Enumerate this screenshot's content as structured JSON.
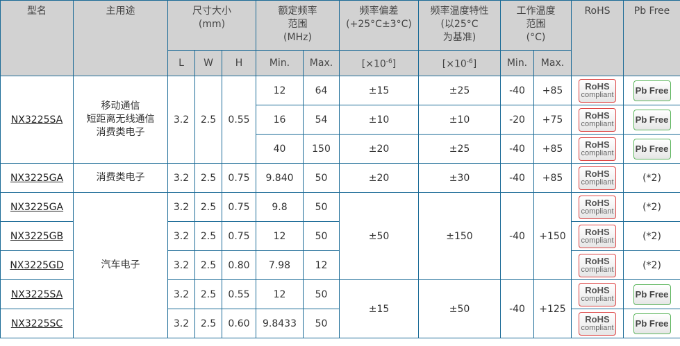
{
  "header": {
    "model": "型名",
    "usage": "主用途",
    "size": "尺寸大小\n(mm)",
    "freq": "额定频率\n范围\n(MHz)",
    "tol": "频率偏差\n(+25°C±3°C)",
    "tempchar": "频率温度特性\n(以25°C\n为基准)",
    "optemp": "工作温度\n范围\n(°C)",
    "rohs": "RoHS",
    "pbfree": "Pb Free",
    "L": "L",
    "W": "W",
    "H": "H",
    "min": "Min.",
    "max": "Max.",
    "unit_base": "[×10",
    "unit_exp": "-6",
    "unit_end": "]",
    "tmin": "Min.",
    "tmax": "Max."
  },
  "badges": {
    "rohs_top": "RoHS",
    "rohs_bottom": "compliant",
    "pbfree": "Pb Free",
    "note": "(*2)"
  },
  "colors": {
    "border": "#1a6a96",
    "header_bg": "#d2d2d2",
    "rohs_border": "#d44444",
    "pbfree_border": "#5bb55b"
  },
  "rows": [
    {
      "model": "NX3225SA",
      "usage": "移动通信\n短距离无线通信\n消费类电子",
      "L": "3.2",
      "W": "2.5",
      "H": "0.55",
      "min": "12",
      "max": "64",
      "tol": "±15",
      "tc": "±25",
      "tmin": "-40",
      "tmax": "+85",
      "pbfree": true
    },
    {
      "min": "16",
      "max": "54",
      "tol": "±10",
      "tc": "±10",
      "tmin": "-20",
      "tmax": "+75",
      "pbfree": true
    },
    {
      "min": "40",
      "max": "150",
      "tol": "±20",
      "tc": "±25",
      "tmin": "-40",
      "tmax": "+85",
      "pbfree": true
    },
    {
      "model": "NX3225GA",
      "usage": "消费类电子",
      "L": "3.2",
      "W": "2.5",
      "H": "0.75",
      "min": "9.840",
      "max": "50",
      "tol": "±20",
      "tc": "±30",
      "tmin": "-40",
      "tmax": "+85",
      "pbfree": false
    },
    {
      "model": "NX3225GA",
      "usage": "汽车电子",
      "L": "3.2",
      "W": "2.5",
      "H": "0.75",
      "min": "9.8",
      "max": "50",
      "tol": "±50",
      "tc": "±150",
      "tmin": "-40",
      "tmax": "+150",
      "pbfree": false
    },
    {
      "model": "NX3225GB",
      "L": "3.2",
      "W": "2.5",
      "H": "0.75",
      "min": "12",
      "max": "50",
      "pbfree": false
    },
    {
      "model": "NX3225GD",
      "L": "3.2",
      "W": "2.5",
      "H": "0.80",
      "min": "7.98",
      "max": "12",
      "pbfree": false
    },
    {
      "model": "NX3225SA",
      "L": "3.2",
      "W": "2.5",
      "H": "0.55",
      "min": "12",
      "max": "50",
      "tol": "±15",
      "tc": "±50",
      "tmin": "-40",
      "tmax": "+125",
      "pbfree": true
    },
    {
      "model": "NX3225SC",
      "L": "3.2",
      "W": "2.5",
      "H": "0.60",
      "min": "9.8433",
      "max": "50",
      "pbfree": true
    }
  ]
}
